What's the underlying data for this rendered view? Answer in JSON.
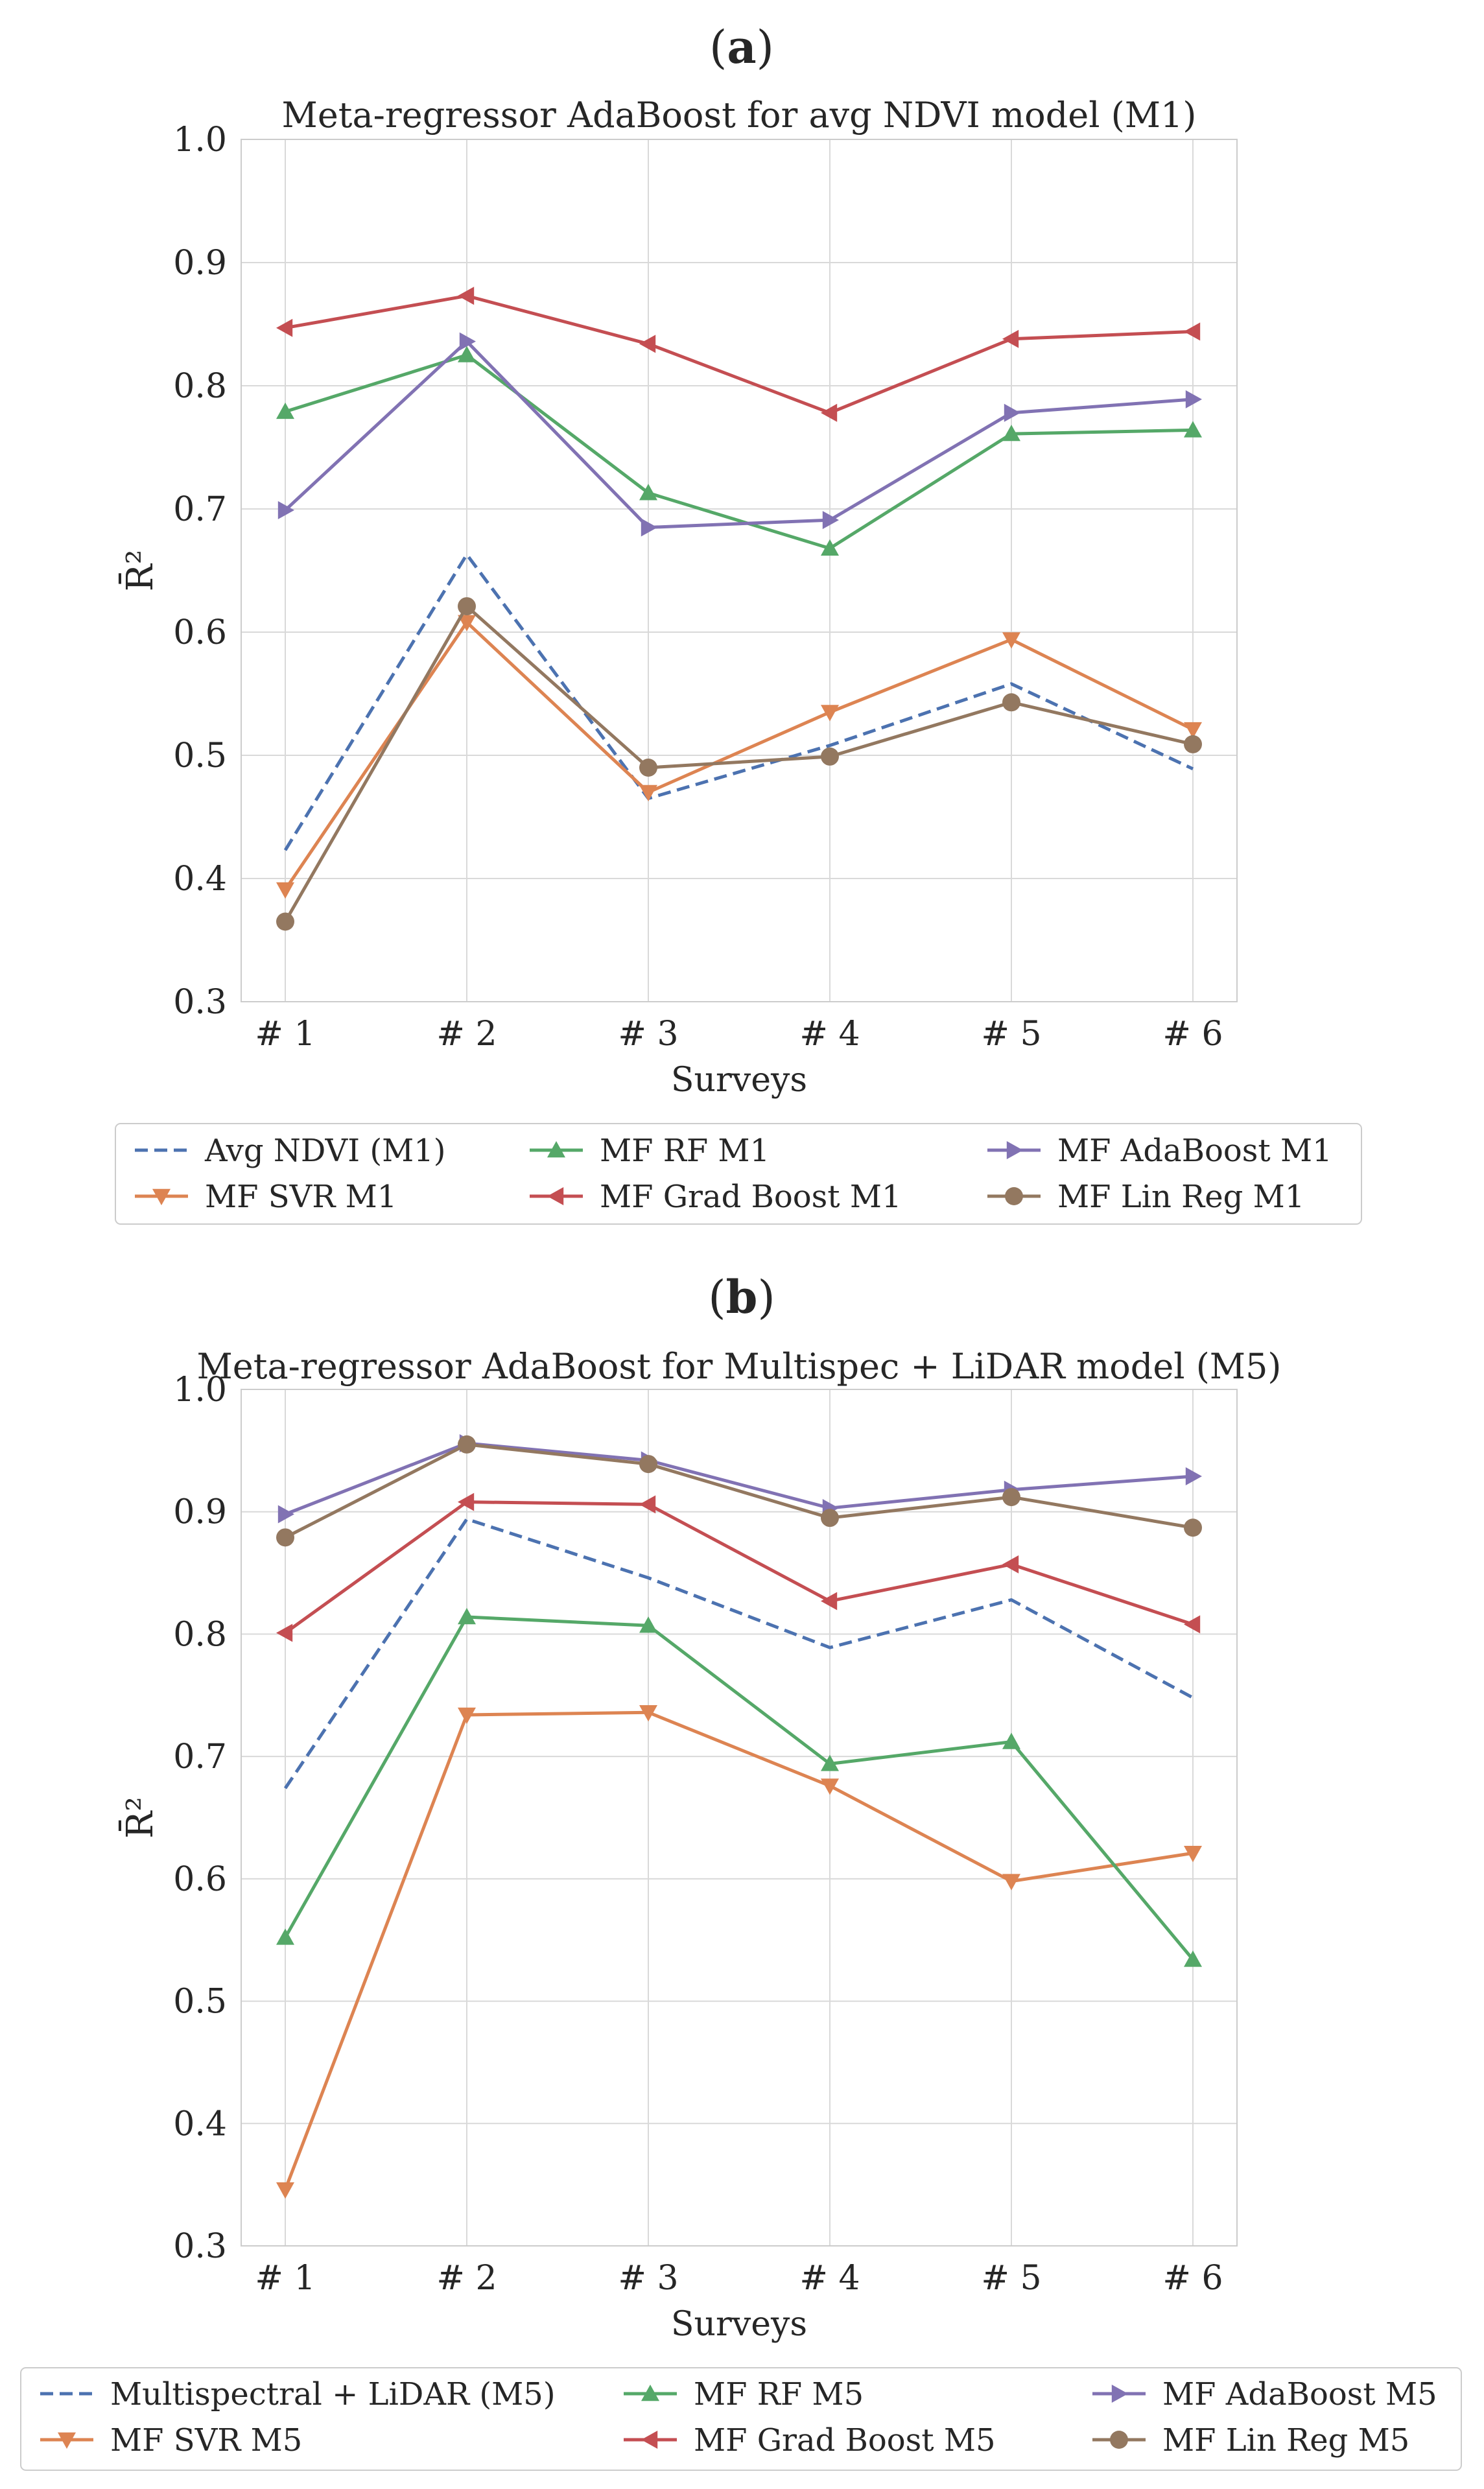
{
  "panels": [
    {
      "label": "(a)",
      "legend_columns": [
        [
          "Avg NDVI (M1)",
          "MF SVR M1"
        ],
        [
          "MF RF M1",
          "MF Grad Boost M1"
        ],
        [
          "MF AdaBoost M1",
          "MF Lin Reg M1"
        ]
      ]
    },
    {
      "label": "(b)",
      "legend_columns": [
        [
          "Multispectral + LiDAR (M5)",
          "MF SVR M5"
        ],
        [
          "MF RF M5",
          "MF Grad Boost M5"
        ],
        [
          "MF AdaBoost M5",
          "MF Lin Reg M5"
        ]
      ]
    }
  ],
  "chart_data": [
    {
      "type": "line",
      "title": "Meta-regressor AdaBoost for avg NDVI model (M1)",
      "xlabel": "Surveys",
      "ylabel": "R̄²",
      "categories": [
        "# 1",
        "# 2",
        "# 3",
        "# 4",
        "# 5",
        "# 6"
      ],
      "ylim": [
        0.3,
        1.0
      ],
      "yticks": [
        "0.3",
        "0.4",
        "0.5",
        "0.6",
        "0.7",
        "0.8",
        "0.9",
        "1.0"
      ],
      "grid": true,
      "legend_position": "bottom",
      "series": [
        {
          "name": "Avg NDVI (M1)",
          "color": "#4c72b0",
          "style": "dashed",
          "marker": "none",
          "values": [
            0.423,
            0.663,
            0.465,
            0.508,
            0.558,
            0.489
          ]
        },
        {
          "name": "MF SVR M1",
          "color": "#dd8452",
          "style": "solid",
          "marker": "triangle-down",
          "values": [
            0.391,
            0.608,
            0.47,
            0.535,
            0.594,
            0.521
          ]
        },
        {
          "name": "MF RF M1",
          "color": "#55a868",
          "style": "solid",
          "marker": "triangle-up",
          "values": [
            0.779,
            0.825,
            0.713,
            0.668,
            0.761,
            0.764
          ]
        },
        {
          "name": "MF Grad Boost M1",
          "color": "#c44e52",
          "style": "solid",
          "marker": "triangle-left",
          "values": [
            0.847,
            0.873,
            0.834,
            0.778,
            0.838,
            0.844
          ]
        },
        {
          "name": "MF AdaBoost M1",
          "color": "#8172b3",
          "style": "solid",
          "marker": "triangle-right",
          "values": [
            0.699,
            0.836,
            0.685,
            0.691,
            0.778,
            0.789
          ]
        },
        {
          "name": "MF Lin Reg M1",
          "color": "#937860",
          "style": "solid",
          "marker": "circle",
          "values": [
            0.365,
            0.621,
            0.49,
            0.499,
            0.543,
            0.509
          ]
        }
      ]
    },
    {
      "type": "line",
      "title": "Meta-regressor AdaBoost for Multispec + LiDAR model (M5)",
      "xlabel": "Surveys",
      "ylabel": "R̄²",
      "categories": [
        "# 1",
        "# 2",
        "# 3",
        "# 4",
        "# 5",
        "# 6"
      ],
      "ylim": [
        0.3,
        1.0
      ],
      "yticks": [
        "0.3",
        "0.4",
        "0.5",
        "0.6",
        "0.7",
        "0.8",
        "0.9",
        "1.0"
      ],
      "grid": true,
      "legend_position": "bottom",
      "series": [
        {
          "name": "Multispectral + LiDAR (M5)",
          "color": "#4c72b0",
          "style": "dashed",
          "marker": "none",
          "values": [
            0.674,
            0.894,
            0.846,
            0.789,
            0.828,
            0.748
          ]
        },
        {
          "name": "MF SVR M5",
          "color": "#dd8452",
          "style": "solid",
          "marker": "triangle-down",
          "values": [
            0.346,
            0.734,
            0.736,
            0.676,
            0.598,
            0.621
          ]
        },
        {
          "name": "MF RF M5",
          "color": "#55a868",
          "style": "solid",
          "marker": "triangle-up",
          "values": [
            0.552,
            0.814,
            0.807,
            0.694,
            0.712,
            0.534
          ]
        },
        {
          "name": "MF Grad Boost M5",
          "color": "#c44e52",
          "style": "solid",
          "marker": "triangle-left",
          "values": [
            0.801,
            0.908,
            0.906,
            0.827,
            0.857,
            0.808
          ]
        },
        {
          "name": "MF AdaBoost M5",
          "color": "#8172b3",
          "style": "solid",
          "marker": "triangle-right",
          "values": [
            0.898,
            0.956,
            0.942,
            0.903,
            0.918,
            0.929
          ]
        },
        {
          "name": "MF Lin Reg M5",
          "color": "#937860",
          "style": "solid",
          "marker": "circle",
          "values": [
            0.879,
            0.955,
            0.939,
            0.895,
            0.912,
            0.887
          ]
        }
      ]
    }
  ]
}
